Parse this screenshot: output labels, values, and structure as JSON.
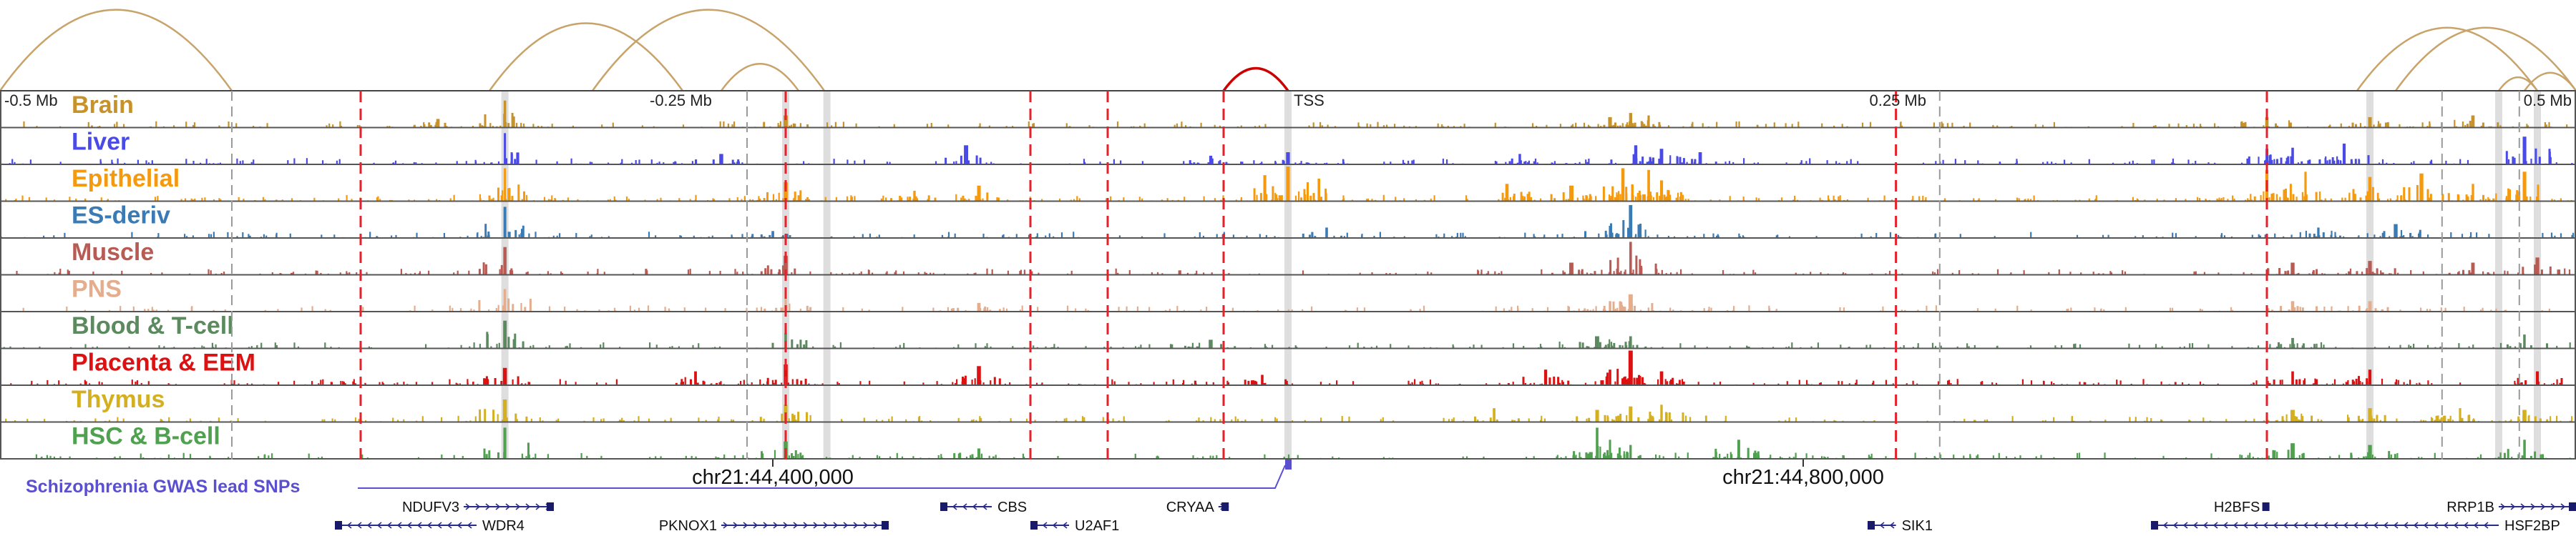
{
  "chart_data": {
    "type": "area",
    "title": "",
    "x_unit": "Mb relative to TSS",
    "xlim": [
      -0.5,
      0.5
    ],
    "axis_ticks": [
      {
        "pos": -0.5,
        "label": "-0.5 Mb"
      },
      {
        "pos": -0.25,
        "label": "-0.25 Mb"
      },
      {
        "pos": 0.0,
        "label": "TSS"
      },
      {
        "pos": 0.25,
        "label": "0.25 Mb"
      },
      {
        "pos": 0.5,
        "label": "0.5 Mb"
      }
    ],
    "coordinate_labels": [
      {
        "pos": -0.2,
        "label": "chr21:44,400,000"
      },
      {
        "pos": 0.2,
        "label": "chr21:44,800,000"
      }
    ],
    "tracks": [
      {
        "name": "Brain",
        "color": "#c8922a",
        "seed": 11,
        "density": 1.0,
        "peaks": [
          [
            -0.304,
            0.78
          ],
          [
            -0.195,
            0.35
          ],
          [
            0.125,
            0.3
          ],
          [
            0.14,
            0.35
          ],
          [
            0.133,
            0.42
          ],
          [
            0.38,
            0.3
          ],
          [
            0.42,
            0.3
          ],
          [
            0.46,
            0.35
          ],
          [
            -0.33,
            0.25
          ]
        ]
      },
      {
        "name": "Liver",
        "color": "#4a4ae6",
        "seed": 23,
        "density": 1.0,
        "peaks": [
          [
            -0.304,
            0.9
          ],
          [
            -0.22,
            0.3
          ],
          [
            -0.03,
            0.25
          ],
          [
            0.0,
            0.35
          ],
          [
            0.09,
            0.3
          ],
          [
            0.135,
            0.55
          ],
          [
            0.145,
            0.45
          ],
          [
            0.38,
            0.45
          ],
          [
            0.39,
            0.48
          ],
          [
            0.41,
            0.6
          ],
          [
            0.48,
            0.8
          ],
          [
            -0.125,
            0.55
          ],
          [
            0.16,
            0.35
          ]
        ]
      },
      {
        "name": "Epithelial",
        "color": "#f59a0f",
        "seed": 37,
        "density": 1.3,
        "peaks": [
          [
            -0.304,
            0.95
          ],
          [
            -0.195,
            0.55
          ],
          [
            -0.009,
            0.75
          ],
          [
            0.0,
            1.0
          ],
          [
            0.012,
            0.65
          ],
          [
            0.085,
            0.5
          ],
          [
            0.11,
            0.45
          ],
          [
            0.13,
            0.95
          ],
          [
            0.14,
            0.9
          ],
          [
            0.145,
            0.6
          ],
          [
            0.38,
            0.9
          ],
          [
            0.395,
            0.85
          ],
          [
            0.42,
            0.7
          ],
          [
            0.44,
            0.8
          ],
          [
            0.46,
            0.5
          ],
          [
            0.48,
            0.85
          ],
          [
            -0.12,
            0.45
          ],
          [
            -0.145,
            0.3
          ]
        ]
      },
      {
        "name": "ES-deriv",
        "color": "#3a7bb5",
        "seed": 41,
        "density": 1.0,
        "peaks": [
          [
            -0.304,
            0.9
          ],
          [
            0.133,
            0.95
          ],
          [
            0.125,
            0.35
          ],
          [
            0.015,
            0.3
          ],
          [
            0.4,
            0.3
          ],
          [
            0.43,
            0.4
          ],
          [
            -0.2,
            0.2
          ]
        ]
      },
      {
        "name": "Muscle",
        "color": "#b85b54",
        "seed": 53,
        "density": 1.0,
        "peaks": [
          [
            -0.304,
            0.8
          ],
          [
            -0.195,
            0.55
          ],
          [
            0.133,
            0.95
          ],
          [
            0.11,
            0.35
          ],
          [
            0.39,
            0.35
          ],
          [
            0.42,
            0.4
          ],
          [
            0.46,
            0.35
          ],
          [
            0.485,
            0.5
          ]
        ]
      },
      {
        "name": "PNS",
        "color": "#e3ad8e",
        "seed": 61,
        "density": 0.9,
        "peaks": [
          [
            -0.304,
            0.65
          ],
          [
            -0.195,
            0.4
          ],
          [
            0.133,
            0.5
          ],
          [
            0.125,
            0.3
          ],
          [
            0.39,
            0.3
          ],
          [
            0.42,
            0.3
          ],
          [
            -0.12,
            0.25
          ]
        ]
      },
      {
        "name": "Blood & T-cell",
        "color": "#5b8a5e",
        "seed": 71,
        "density": 0.9,
        "peaks": [
          [
            -0.304,
            0.8
          ],
          [
            -0.195,
            0.45
          ],
          [
            0.12,
            0.35
          ],
          [
            0.133,
            0.35
          ],
          [
            0.39,
            0.3
          ],
          [
            0.48,
            0.4
          ],
          [
            -0.03,
            0.25
          ]
        ]
      },
      {
        "name": "Placenta & EEM",
        "color": "#dd1111",
        "seed": 83,
        "density": 1.25,
        "peaks": [
          [
            -0.304,
            0.5
          ],
          [
            -0.23,
            0.4
          ],
          [
            -0.195,
            0.6
          ],
          [
            -0.12,
            0.55
          ],
          [
            0.133,
            1.0
          ],
          [
            0.125,
            0.45
          ],
          [
            0.145,
            0.4
          ],
          [
            0.1,
            0.45
          ],
          [
            0.39,
            0.4
          ],
          [
            0.42,
            0.45
          ],
          [
            0.485,
            0.4
          ],
          [
            -0.01,
            0.3
          ]
        ]
      },
      {
        "name": "Thymus",
        "color": "#d4b020",
        "seed": 97,
        "density": 1.0,
        "peaks": [
          [
            -0.304,
            0.65
          ],
          [
            -0.195,
            0.5
          ],
          [
            0.08,
            0.4
          ],
          [
            0.133,
            0.45
          ],
          [
            0.145,
            0.5
          ],
          [
            0.12,
            0.35
          ],
          [
            0.39,
            0.35
          ],
          [
            0.42,
            0.4
          ],
          [
            0.455,
            0.4
          ],
          [
            0.48,
            0.35
          ]
        ]
      },
      {
        "name": "HSC & B-cell",
        "color": "#4fa04f",
        "seed": 101,
        "density": 1.0,
        "peaks": [
          [
            -0.304,
            0.9
          ],
          [
            -0.195,
            0.5
          ],
          [
            0.12,
            0.9
          ],
          [
            0.125,
            0.55
          ],
          [
            0.133,
            0.4
          ],
          [
            0.175,
            0.55
          ],
          [
            0.39,
            0.45
          ],
          [
            0.42,
            0.4
          ],
          [
            0.48,
            0.55
          ],
          [
            -0.12,
            0.3
          ]
        ]
      }
    ],
    "red_dashed_lines": [
      -0.36,
      -0.195,
      -0.1,
      -0.07,
      -0.025,
      0.236,
      0.38
    ],
    "gray_dashed_lines": [
      -0.41,
      -0.21,
      0.253,
      0.448,
      0.478
    ],
    "highlight_bands": [
      -0.304,
      -0.195,
      -0.179,
      0.0,
      0.42,
      0.47,
      0.485
    ],
    "loops": [
      {
        "from": -0.5,
        "to": -0.41,
        "color": "#c8a36a"
      },
      {
        "from": -0.31,
        "to": -0.235,
        "color": "#c8a36a"
      },
      {
        "from": -0.27,
        "to": -0.18,
        "color": "#c8a36a"
      },
      {
        "from": -0.22,
        "to": -0.19,
        "color": "#c8a36a"
      },
      {
        "from": -0.025,
        "to": 0.0,
        "color": "#cc0000"
      },
      {
        "from": 0.415,
        "to": 0.485,
        "color": "#c8a36a"
      },
      {
        "from": 0.43,
        "to": 0.5,
        "color": "#c8a36a"
      },
      {
        "from": 0.47,
        "to": 0.485,
        "color": "#c8a36a"
      },
      {
        "from": 0.48,
        "to": 0.5,
        "color": "#c8a36a"
      }
    ],
    "gwas": {
      "label": "Schizophrenia GWAS lead SNPs",
      "color": "#5a4fcf",
      "snp_pos": 0.0
    },
    "genes": [
      {
        "name": "NDUFV3",
        "start": -0.32,
        "end": -0.285,
        "strand": "+",
        "row": 0,
        "label_side": "left"
      },
      {
        "name": "WDR4",
        "start": -0.37,
        "end": -0.315,
        "strand": "-",
        "row": 1,
        "label_side": "right"
      },
      {
        "name": "PKNOX1",
        "start": -0.22,
        "end": -0.155,
        "strand": "+",
        "row": 1,
        "label_side": "left"
      },
      {
        "name": "CBS",
        "start": -0.135,
        "end": -0.115,
        "strand": "-",
        "row": 0,
        "label_side": "right"
      },
      {
        "name": "U2AF1",
        "start": -0.1,
        "end": -0.085,
        "strand": "-",
        "row": 1,
        "label_side": "right"
      },
      {
        "name": "CRYAA",
        "start": -0.027,
        "end": -0.023,
        "strand": "+",
        "row": 0,
        "label_side": "left"
      },
      {
        "name": "SIK1",
        "start": 0.225,
        "end": 0.236,
        "strand": "-",
        "row": 1,
        "label_side": "right"
      },
      {
        "name": "H2BFS",
        "start": 0.379,
        "end": 0.381,
        "strand": "+",
        "row": 0,
        "label_side": "left"
      },
      {
        "name": "RRP1B",
        "start": 0.47,
        "end": 0.5,
        "strand": "+",
        "row": 0,
        "label_side": "left"
      },
      {
        "name": "HSF2BP",
        "start": 0.335,
        "end": 0.47,
        "strand": "-",
        "row": 1,
        "label_side": "right"
      }
    ]
  }
}
